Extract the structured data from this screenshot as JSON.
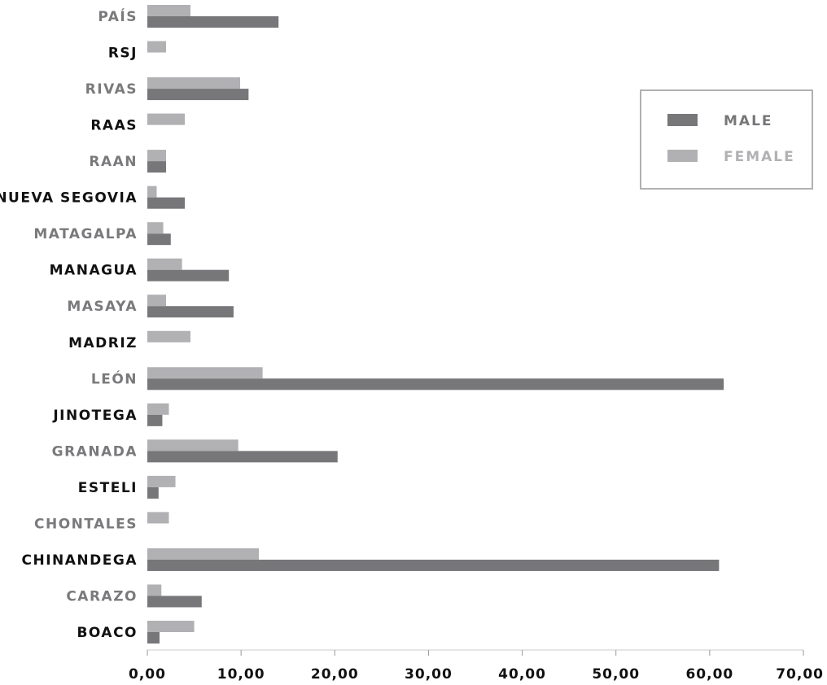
{
  "chart_data": {
    "type": "bar",
    "orientation": "horizontal",
    "categories": [
      "PAÍS",
      "RSJ",
      "RIVAS",
      "RAAS",
      "RAAN",
      "NUEVA SEGOVIA",
      "MATAGALPA",
      "MANAGUA",
      "MASAYA",
      "MADRIZ",
      "LEÓN",
      "JINOTEGA",
      "GRANADA",
      "ESTELI",
      "CHONTALES",
      "CHINANDEGA",
      "CARAZO",
      "BOACO"
    ],
    "series": [
      {
        "name": "MALE",
        "color": "#77777a",
        "values": [
          14.0,
          0,
          10.8,
          0,
          2.0,
          4.0,
          2.5,
          8.7,
          9.2,
          0,
          61.5,
          1.6,
          20.3,
          1.2,
          0,
          61.0,
          5.8,
          1.3
        ]
      },
      {
        "name": "FEMALE",
        "color": "#b1b1b4",
        "values": [
          4.6,
          2.0,
          9.9,
          4.0,
          2.0,
          1.0,
          1.7,
          3.7,
          2.0,
          4.6,
          12.3,
          2.3,
          9.7,
          3.0,
          2.3,
          11.9,
          1.5,
          5.0
        ]
      }
    ],
    "xlim": [
      0,
      70
    ],
    "xticks": [
      "0,00",
      "10,00",
      "20,00",
      "30,00",
      "40,00",
      "50,00",
      "60,00",
      "70,00"
    ],
    "xtick_values": [
      0,
      10,
      20,
      30,
      40,
      50,
      60,
      70
    ],
    "grid": false,
    "legend": {
      "position": "top-right",
      "entries": [
        "MALE",
        "FEMALE"
      ]
    },
    "label_colors": {
      "odd": "#111111",
      "even": "#7a7a7d"
    }
  }
}
